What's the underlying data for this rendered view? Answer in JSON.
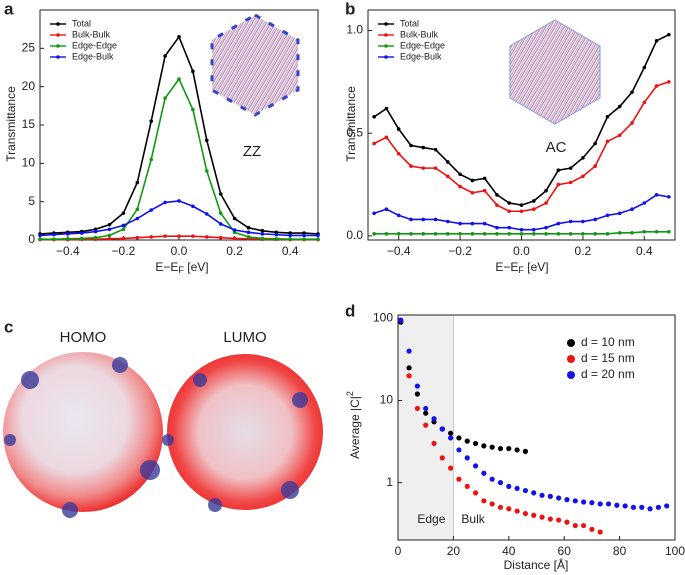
{
  "chart_data": [
    {
      "type": "line",
      "panel_label": "a",
      "annotation": "ZZ",
      "xlabel": {
        "main": "E−E",
        "sub": "F",
        "unit": " [eV]"
      },
      "ylabel": "Transmittance",
      "xlim": [
        -0.5,
        0.5
      ],
      "ylim": [
        0,
        30
      ],
      "xticks": [
        {
          "value": -0.4,
          "label": "−0.4"
        },
        {
          "value": -0.2,
          "label": "−0.2"
        },
        {
          "value": 0,
          "label": "0.0"
        },
        0.2,
        0.4
      ],
      "yticks": [
        0,
        5,
        10,
        15,
        20,
        25
      ],
      "legend": "upper left",
      "x": [
        -0.5,
        -0.45,
        -0.4,
        -0.35,
        -0.3,
        -0.25,
        -0.2,
        -0.15,
        -0.1,
        -0.05,
        0,
        0.05,
        0.1,
        0.15,
        0.2,
        0.25,
        0.3,
        0.35,
        0.4,
        0.45,
        0.5
      ],
      "series": [
        {
          "name": "Total",
          "color": "#000000",
          "values": [
            0.8,
            0.9,
            1.0,
            1.1,
            1.4,
            2.0,
            3.5,
            7.5,
            15.5,
            24,
            26.5,
            22,
            13,
            6,
            2.8,
            1.6,
            1.2,
            1.0,
            0.9,
            0.9,
            0.8
          ]
        },
        {
          "name": "Bulk-Bulk",
          "color": "#ee1111",
          "values": [
            0.05,
            0.05,
            0.05,
            0.1,
            0.1,
            0.15,
            0.2,
            0.3,
            0.4,
            0.5,
            0.5,
            0.5,
            0.4,
            0.3,
            0.2,
            0.15,
            0.1,
            0.1,
            0.05,
            0.05,
            0.05
          ]
        },
        {
          "name": "Edge-Edge",
          "color": "#119911",
          "values": [
            0.1,
            0.1,
            0.15,
            0.2,
            0.3,
            0.6,
            1.4,
            4,
            10.5,
            18.5,
            21,
            17,
            9,
            3.5,
            1.0,
            0.4,
            0.2,
            0.15,
            0.1,
            0.1,
            0.1
          ]
        },
        {
          "name": "Edge-Bulk",
          "color": "#1111ee",
          "values": [
            0.6,
            0.7,
            0.8,
            0.9,
            1.1,
            1.4,
            1.9,
            2.8,
            3.9,
            4.9,
            5.1,
            4.4,
            3.4,
            2.1,
            1.3,
            1.0,
            0.8,
            0.7,
            0.6,
            0.6,
            0.6
          ]
        }
      ]
    },
    {
      "type": "line",
      "panel_label": "b",
      "annotation": "AC",
      "xlabel": {
        "main": "E−E",
        "sub": "F",
        "unit": " [eV]"
      },
      "ylabel": "Transmittance",
      "xlim": [
        -0.5,
        0.5
      ],
      "ylim": [
        -0.02,
        1.1
      ],
      "xticks": [
        {
          "value": -0.4,
          "label": "−0.4"
        },
        {
          "value": -0.2,
          "label": "−0.2"
        },
        {
          "value": 0,
          "label": "0.0"
        },
        0.2,
        0.4
      ],
      "yticks": [
        {
          "value": 0,
          "label": "0.0"
        },
        0.5,
        {
          "value": 1,
          "label": "1.0"
        }
      ],
      "legend": "upper left",
      "x": [
        -0.48,
        -0.44,
        -0.4,
        -0.36,
        -0.32,
        -0.28,
        -0.24,
        -0.2,
        -0.16,
        -0.12,
        -0.08,
        -0.04,
        0,
        0.04,
        0.08,
        0.12,
        0.16,
        0.2,
        0.24,
        0.28,
        0.32,
        0.36,
        0.4,
        0.44,
        0.48
      ],
      "series": [
        {
          "name": "Total",
          "color": "#000000",
          "values": [
            0.58,
            0.62,
            0.52,
            0.44,
            0.43,
            0.42,
            0.36,
            0.3,
            0.27,
            0.28,
            0.2,
            0.16,
            0.15,
            0.17,
            0.22,
            0.32,
            0.33,
            0.38,
            0.45,
            0.58,
            0.63,
            0.7,
            0.82,
            0.95,
            0.98
          ]
        },
        {
          "name": "Bulk-Bulk",
          "color": "#ee1111",
          "values": [
            0.45,
            0.48,
            0.4,
            0.34,
            0.33,
            0.33,
            0.29,
            0.24,
            0.21,
            0.22,
            0.15,
            0.12,
            0.12,
            0.13,
            0.16,
            0.25,
            0.26,
            0.29,
            0.34,
            0.46,
            0.49,
            0.55,
            0.65,
            0.73,
            0.75
          ]
        },
        {
          "name": "Edge-Edge",
          "color": "#119911",
          "values": [
            0.01,
            0.01,
            0.01,
            0.01,
            0.01,
            0.01,
            0.01,
            0.01,
            0.01,
            0.01,
            0.01,
            0.01,
            0.01,
            0.01,
            0.01,
            0.01,
            0.01,
            0.01,
            0.01,
            0.01,
            0.015,
            0.015,
            0.02,
            0.02,
            0.02
          ]
        },
        {
          "name": "Edge-Bulk",
          "color": "#1111ee",
          "values": [
            0.11,
            0.13,
            0.1,
            0.08,
            0.08,
            0.08,
            0.07,
            0.06,
            0.06,
            0.06,
            0.04,
            0.04,
            0.03,
            0.03,
            0.04,
            0.06,
            0.07,
            0.07,
            0.08,
            0.1,
            0.11,
            0.13,
            0.16,
            0.2,
            0.19
          ]
        }
      ]
    },
    {
      "type": "scatter",
      "panel_label": "d",
      "region_labels": [
        "Edge",
        "Bulk"
      ],
      "shaded_xrange": [
        0,
        20
      ],
      "xlabel": {
        "main": "Distance [Å]"
      },
      "ylabel": {
        "main": "Average |C|",
        "sup": "2"
      },
      "xlim": [
        0,
        100
      ],
      "ylim": [
        0.2,
        110
      ],
      "yscale": "log",
      "xticks": [
        0,
        20,
        40,
        60,
        80,
        100
      ],
      "yticks": [
        1,
        10,
        100
      ],
      "legend": "upper right",
      "series": [
        {
          "name": "d = 10 nm",
          "color": "#000000",
          "x": [
            1,
            4,
            7,
            10,
            13,
            16,
            19,
            22,
            25,
            28,
            31,
            34,
            37,
            40,
            43,
            46
          ],
          "values": [
            90,
            25,
            12,
            7,
            5.5,
            4.5,
            4,
            3.5,
            3.2,
            3.0,
            2.8,
            2.7,
            2.6,
            2.6,
            2.5,
            2.4
          ]
        },
        {
          "name": "d = 15 nm",
          "color": "#ee1111",
          "x": [
            1,
            4,
            7,
            10,
            13,
            16,
            19,
            22,
            25,
            28,
            31,
            34,
            37,
            40,
            43,
            46,
            49,
            52,
            55,
            58,
            61,
            64,
            67,
            70,
            73
          ],
          "values": [
            95,
            20,
            8,
            5,
            3,
            2,
            1.5,
            1.1,
            0.9,
            0.75,
            0.6,
            0.55,
            0.5,
            0.48,
            0.45,
            0.42,
            0.4,
            0.38,
            0.36,
            0.35,
            0.33,
            0.3,
            0.3,
            0.27,
            0.25
          ]
        },
        {
          "name": "d = 20 nm",
          "color": "#1111ee",
          "x": [
            1,
            4,
            7,
            10,
            13,
            16,
            19,
            22,
            25,
            28,
            31,
            34,
            37,
            40,
            43,
            46,
            49,
            52,
            55,
            58,
            61,
            64,
            67,
            70,
            73,
            76,
            79,
            82,
            85,
            88,
            91,
            94,
            97
          ],
          "values": [
            95,
            40,
            15,
            8,
            6,
            4.5,
            3.5,
            2.5,
            2,
            1.6,
            1.3,
            1.1,
            1.0,
            0.9,
            0.85,
            0.8,
            0.75,
            0.7,
            0.68,
            0.65,
            0.62,
            0.6,
            0.58,
            0.57,
            0.55,
            0.55,
            0.53,
            0.52,
            0.5,
            0.5,
            0.48,
            0.5,
            0.52
          ]
        }
      ]
    }
  ],
  "panel_c": {
    "panel_label": "c",
    "labels": [
      "HOMO",
      "LUMO"
    ]
  }
}
